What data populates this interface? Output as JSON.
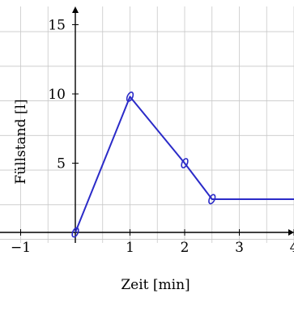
{
  "chart_data": {
    "type": "line",
    "xlabel": "Zeit [min]",
    "ylabel": "Füllstand [l]",
    "xlim": [
      -1,
      4
    ],
    "ylim": [
      -0.5,
      16.5
    ],
    "grid": true,
    "x_ticks": [
      {
        "value": -1,
        "label": "−1"
      },
      {
        "value": 1,
        "label": "1"
      },
      {
        "value": 2,
        "label": "2"
      },
      {
        "value": 3,
        "label": "3"
      },
      {
        "value": 4,
        "label": "4"
      }
    ],
    "y_ticks": [
      {
        "value": 5,
        "label": "5"
      },
      {
        "value": 10,
        "label": "10"
      },
      {
        "value": 15,
        "label": "15"
      }
    ],
    "series": [
      {
        "color": "#2b2bc8",
        "x": [
          0,
          1,
          2,
          2.5,
          4
        ],
        "y": [
          0,
          9.8,
          5.0,
          2.4,
          2.4
        ],
        "markers_at": [
          0,
          1,
          2,
          2.5
        ]
      }
    ]
  }
}
